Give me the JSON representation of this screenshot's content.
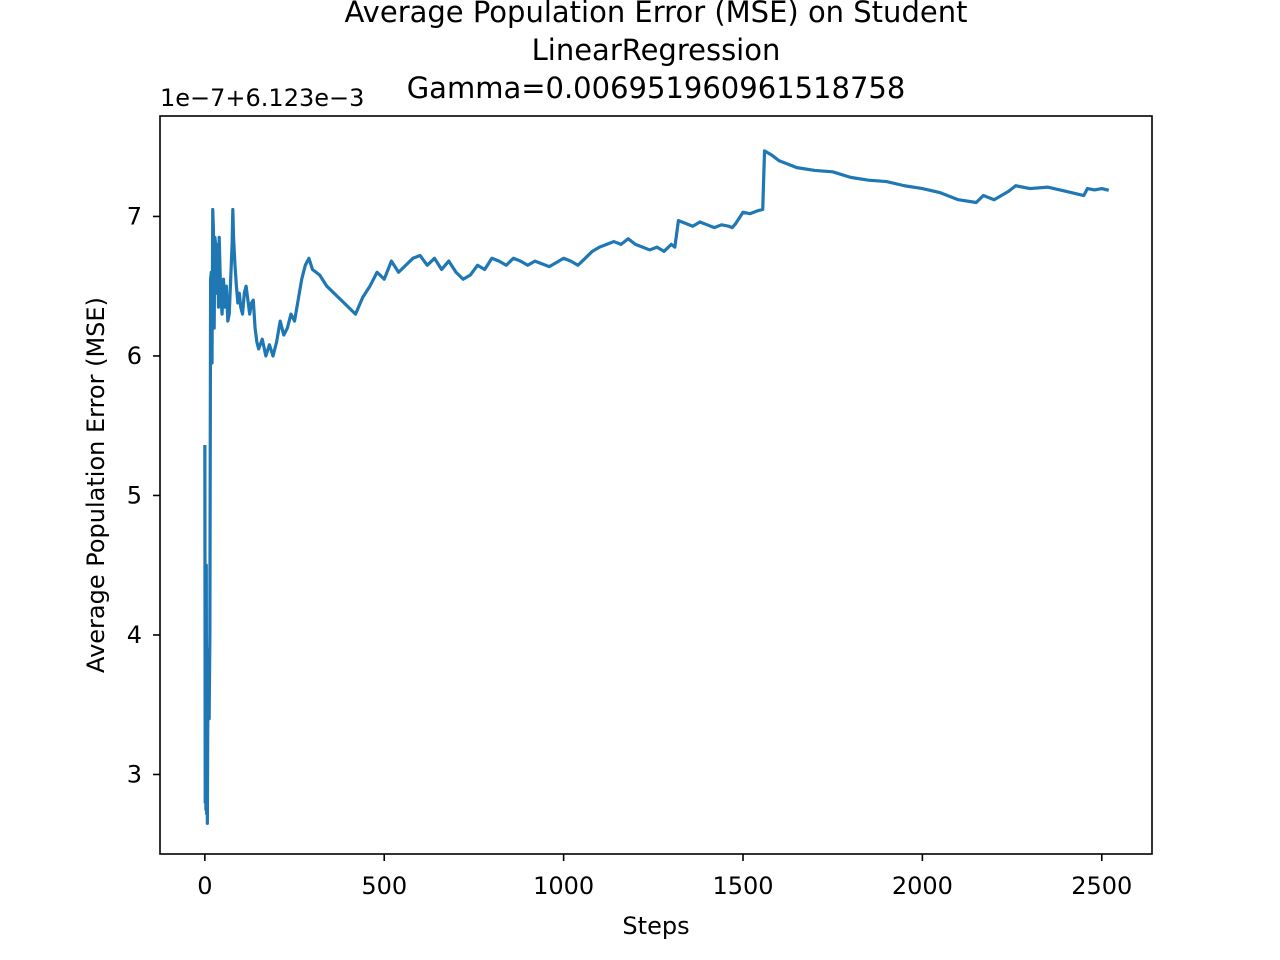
{
  "chart_data": {
    "type": "line",
    "title_lines": [
      "Average Population Error (MSE) on Student",
      "LinearRegression",
      "Gamma=0.006951960961518758"
    ],
    "xlabel": "Steps",
    "ylabel": "Average Population Error (MSE)",
    "offset_text": "1e−7+6.123e−3",
    "y_units_note": "values are in units of 1e-7, offset by 6.123e-3",
    "xlim": [
      -125,
      2640
    ],
    "ylim": [
      2.43,
      7.72
    ],
    "x_ticks": [
      0,
      500,
      1000,
      1500,
      2000,
      2500
    ],
    "x_tick_labels": [
      "0",
      "500",
      "1000",
      "1500",
      "2000",
      "2500"
    ],
    "y_ticks": [
      3,
      4,
      5,
      6,
      7
    ],
    "y_tick_labels": [
      "3",
      "4",
      "5",
      "6",
      "7"
    ],
    "grid": false,
    "series": [
      {
        "color": "#1f77b4",
        "x": [
          0,
          1,
          2,
          3,
          4,
          5,
          6,
          7,
          8,
          9,
          10,
          12,
          14,
          16,
          18,
          20,
          22,
          24,
          26,
          28,
          30,
          32,
          34,
          36,
          38,
          40,
          44,
          48,
          52,
          56,
          60,
          64,
          68,
          72,
          76,
          78,
          80,
          84,
          88,
          92,
          96,
          100,
          105,
          110,
          115,
          120,
          125,
          130,
          135,
          140,
          145,
          150,
          160,
          170,
          180,
          190,
          200,
          210,
          220,
          230,
          240,
          250,
          260,
          270,
          280,
          290,
          300,
          320,
          340,
          360,
          380,
          400,
          420,
          440,
          460,
          480,
          500,
          520,
          540,
          560,
          580,
          600,
          620,
          640,
          660,
          680,
          700,
          720,
          740,
          760,
          780,
          800,
          820,
          840,
          860,
          880,
          900,
          920,
          940,
          960,
          980,
          1000,
          1020,
          1040,
          1060,
          1080,
          1100,
          1120,
          1140,
          1160,
          1180,
          1200,
          1220,
          1240,
          1260,
          1280,
          1300,
          1310,
          1320,
          1340,
          1360,
          1380,
          1400,
          1420,
          1440,
          1460,
          1470,
          1480,
          1500,
          1520,
          1540,
          1555,
          1560,
          1580,
          1600,
          1650,
          1700,
          1750,
          1800,
          1850,
          1900,
          1950,
          2000,
          2050,
          2100,
          2150,
          2170,
          2200,
          2240,
          2260,
          2300,
          2350,
          2400,
          2450,
          2460,
          2480,
          2500,
          2515
        ],
        "y": [
          5.35,
          2.8,
          3.1,
          2.75,
          4.5,
          2.72,
          3.9,
          2.65,
          3.3,
          3.8,
          3.55,
          3.4,
          4.0,
          6.55,
          6.6,
          5.95,
          7.05,
          6.9,
          6.2,
          6.85,
          6.8,
          6.45,
          6.65,
          6.8,
          6.35,
          6.85,
          6.45,
          6.3,
          6.55,
          6.35,
          6.5,
          6.25,
          6.3,
          6.55,
          6.8,
          7.05,
          6.85,
          6.65,
          6.5,
          6.38,
          6.45,
          6.35,
          6.3,
          6.45,
          6.5,
          6.4,
          6.3,
          6.38,
          6.4,
          6.2,
          6.1,
          6.05,
          6.12,
          6.0,
          6.08,
          6.0,
          6.1,
          6.25,
          6.15,
          6.2,
          6.3,
          6.25,
          6.4,
          6.55,
          6.65,
          6.7,
          6.62,
          6.58,
          6.5,
          6.45,
          6.4,
          6.35,
          6.3,
          6.42,
          6.5,
          6.6,
          6.55,
          6.68,
          6.6,
          6.65,
          6.7,
          6.72,
          6.65,
          6.7,
          6.62,
          6.68,
          6.6,
          6.55,
          6.58,
          6.65,
          6.62,
          6.7,
          6.68,
          6.65,
          6.7,
          6.68,
          6.65,
          6.68,
          6.66,
          6.64,
          6.67,
          6.7,
          6.68,
          6.65,
          6.7,
          6.75,
          6.78,
          6.8,
          6.82,
          6.8,
          6.84,
          6.8,
          6.78,
          6.76,
          6.78,
          6.75,
          6.8,
          6.78,
          6.97,
          6.95,
          6.93,
          6.96,
          6.94,
          6.92,
          6.94,
          6.93,
          6.92,
          6.95,
          7.03,
          7.02,
          7.04,
          7.05,
          7.47,
          7.44,
          7.4,
          7.35,
          7.33,
          7.32,
          7.28,
          7.26,
          7.25,
          7.22,
          7.2,
          7.17,
          7.12,
          7.1,
          7.15,
          7.12,
          7.18,
          7.22,
          7.2,
          7.21,
          7.18,
          7.15,
          7.2,
          7.19,
          7.2,
          7.19
        ]
      }
    ]
  }
}
